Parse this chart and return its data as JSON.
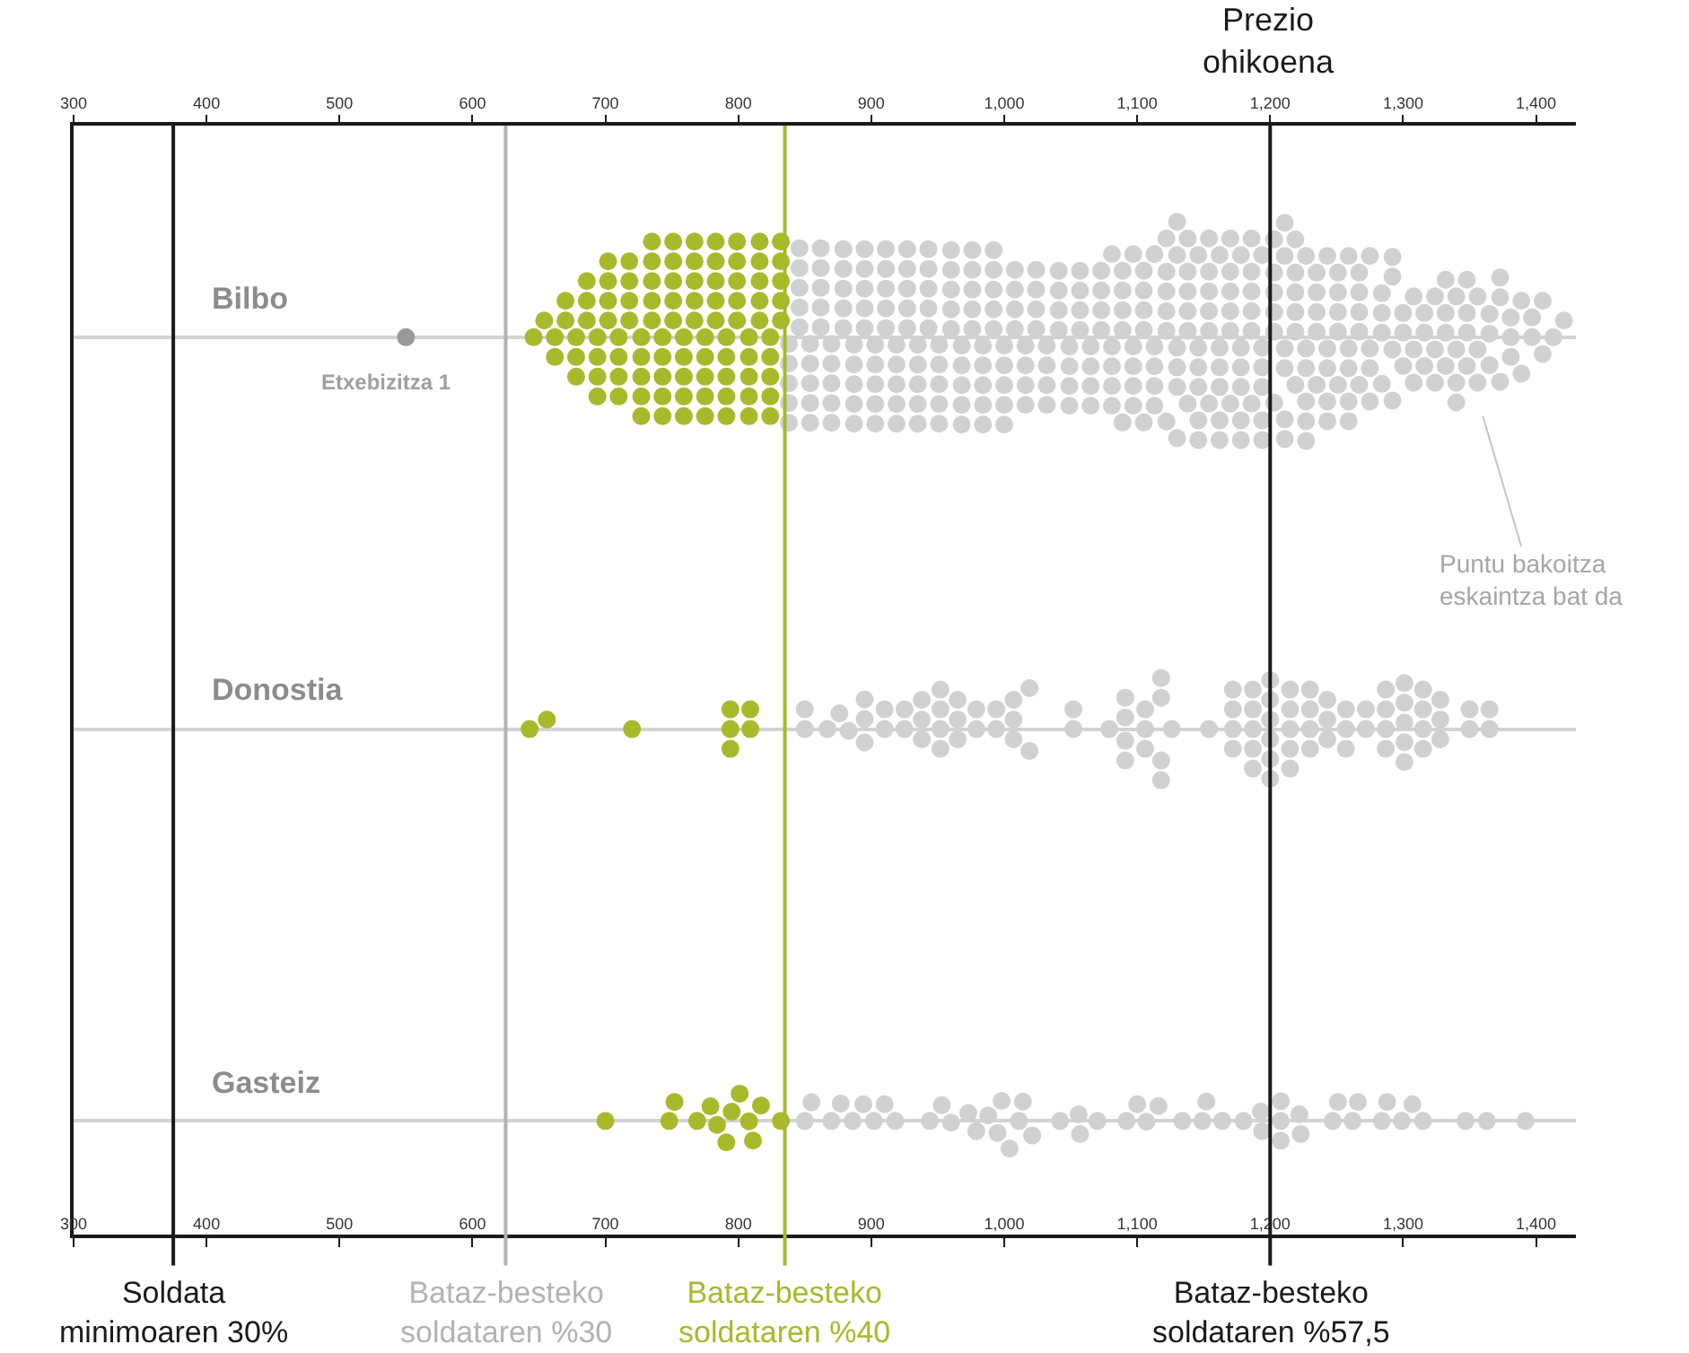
{
  "chart_data": {
    "type": "scatter",
    "orientation": "horizontal",
    "categories": [
      "Bilbo",
      "Donostia",
      "Gasteiz"
    ],
    "series": [
      {
        "color": "#a8b92c",
        "x": [
          "Bilbo",
          "Bilbo",
          "Bilbo",
          "Bilbo",
          "Bilbo",
          "Bilbo",
          "Bilbo",
          "Bilbo",
          "Bilbo",
          "Bilbo",
          "Bilbo",
          "Bilbo",
          "Bilbo",
          "Bilbo",
          "Bilbo",
          "Bilbo",
          "Bilbo",
          "Bilbo",
          "Bilbo",
          "Bilbo",
          "Bilbo",
          "Bilbo",
          "Bilbo",
          "Bilbo",
          "Bilbo",
          "Bilbo",
          "Bilbo",
          "Bilbo",
          "Bilbo",
          "Bilbo",
          "Bilbo",
          "Bilbo",
          "Bilbo",
          "Bilbo",
          "Bilbo",
          "Bilbo",
          "Bilbo",
          "Bilbo",
          "Bilbo",
          "Bilbo",
          "Bilbo",
          "Bilbo",
          "Bilbo",
          "Bilbo",
          "Bilbo",
          "Bilbo",
          "Bilbo",
          "Bilbo",
          "Bilbo",
          "Bilbo",
          "Bilbo",
          "Bilbo",
          "Bilbo",
          "Bilbo",
          "Bilbo",
          "Bilbo",
          "Bilbo",
          "Bilbo",
          "Bilbo",
          "Bilbo",
          "Bilbo",
          "Bilbo",
          "Bilbo",
          "Bilbo",
          "Bilbo",
          "Bilbo",
          "Bilbo",
          "Bilbo",
          "Bilbo",
          "Bilbo",
          "Bilbo",
          "Bilbo",
          "Bilbo",
          "Bilbo",
          "Bilbo",
          "Bilbo",
          "Bilbo",
          "Bilbo",
          "Bilbo",
          "Bilbo",
          "Bilbo",
          "Bilbo",
          "Bilbo",
          "Bilbo",
          "Bilbo",
          "Bilbo",
          "Bilbo",
          "Bilbo",
          "Bilbo",
          "Bilbo",
          "Bilbo",
          "Bilbo",
          "Bilbo",
          "Bilbo",
          "Bilbo",
          "Bilbo",
          "Bilbo",
          "Bilbo"
        ],
        "values": [
          646,
          654,
          662,
          662,
          670,
          670,
          678,
          678,
          678,
          686,
          686,
          686,
          694,
          694,
          694,
          694,
          702,
          702,
          702,
          702,
          710,
          710,
          710,
          710,
          718,
          718,
          718,
          718,
          727,
          727,
          727,
          727,
          727,
          735,
          735,
          735,
          735,
          735,
          743,
          743,
          743,
          743,
          743,
          751,
          751,
          751,
          751,
          751,
          759,
          759,
          759,
          759,
          759,
          767,
          767,
          767,
          767,
          767,
          775,
          775,
          775,
          775,
          775,
          783,
          783,
          783,
          783,
          783,
          791,
          791,
          791,
          791,
          791,
          799,
          799,
          799,
          799,
          799,
          808,
          808,
          808,
          808,
          808,
          816,
          816,
          816,
          816,
          816,
          824,
          824,
          824,
          824,
          824,
          832,
          832,
          832,
          832,
          832
        ]
      },
      {
        "color": "#999999",
        "x": [
          "Bilbo"
        ],
        "values": [
          550
        ]
      },
      {
        "color": "#d0d1d3",
        "x": [
          "Bilbo",
          "Bilbo",
          "Bilbo",
          "Bilbo",
          "Bilbo",
          "Bilbo",
          "Bilbo",
          "Bilbo",
          "Bilbo",
          "Bilbo",
          "Bilbo",
          "Bilbo",
          "Bilbo",
          "Bilbo",
          "Bilbo",
          "Bilbo",
          "Bilbo",
          "Bilbo",
          "Bilbo",
          "Bilbo",
          "Bilbo",
          "Bilbo",
          "Bilbo",
          "Bilbo",
          "Bilbo",
          "Bilbo",
          "Bilbo",
          "Bilbo",
          "Bilbo",
          "Bilbo",
          "Bilbo",
          "Bilbo",
          "Bilbo",
          "Bilbo",
          "Bilbo",
          "Bilbo",
          "Bilbo",
          "Bilbo",
          "Bilbo",
          "Bilbo",
          "Bilbo",
          "Bilbo",
          "Bilbo",
          "Bilbo",
          "Bilbo",
          "Bilbo",
          "Bilbo",
          "Bilbo",
          "Bilbo",
          "Bilbo",
          "Bilbo",
          "Bilbo",
          "Bilbo",
          "Bilbo",
          "Bilbo",
          "Bilbo",
          "Bilbo",
          "Bilbo",
          "Bilbo",
          "Bilbo",
          "Bilbo",
          "Bilbo",
          "Bilbo",
          "Bilbo",
          "Bilbo",
          "Bilbo",
          "Bilbo",
          "Bilbo",
          "Bilbo",
          "Bilbo",
          "Bilbo",
          "Bilbo",
          "Bilbo",
          "Bilbo",
          "Bilbo",
          "Bilbo",
          "Bilbo",
          "Bilbo",
          "Bilbo",
          "Bilbo",
          "Bilbo",
          "Bilbo",
          "Bilbo",
          "Bilbo",
          "Bilbo",
          "Bilbo",
          "Bilbo",
          "Bilbo",
          "Bilbo",
          "Bilbo",
          "Bilbo",
          "Bilbo",
          "Bilbo",
          "Bilbo",
          "Bilbo",
          "Bilbo",
          "Bilbo",
          "Bilbo",
          "Bilbo",
          "Bilbo",
          "Bilbo",
          "Bilbo",
          "Bilbo",
          "Bilbo",
          "Bilbo",
          "Bilbo",
          "Bilbo",
          "Bilbo",
          "Bilbo",
          "Bilbo",
          "Bilbo",
          "Bilbo",
          "Bilbo",
          "Bilbo",
          "Bilbo",
          "Bilbo",
          "Bilbo",
          "Bilbo",
          "Bilbo",
          "Bilbo",
          "Bilbo",
          "Bilbo",
          "Bilbo",
          "Bilbo",
          "Bilbo",
          "Bilbo",
          "Bilbo",
          "Bilbo",
          "Bilbo",
          "Bilbo",
          "Bilbo",
          "Bilbo",
          "Bilbo",
          "Bilbo",
          "Bilbo",
          "Bilbo",
          "Bilbo",
          "Bilbo",
          "Bilbo",
          "Bilbo",
          "Bilbo",
          "Bilbo",
          "Bilbo",
          "Bilbo",
          "Bilbo",
          "Bilbo",
          "Bilbo",
          "Bilbo",
          "Bilbo",
          "Bilbo",
          "Bilbo",
          "Bilbo",
          "Bilbo",
          "Bilbo",
          "Bilbo",
          "Bilbo",
          "Bilbo",
          "Bilbo",
          "Bilbo",
          "Bilbo",
          "Bilbo",
          "Bilbo",
          "Bilbo",
          "Bilbo",
          "Bilbo",
          "Bilbo",
          "Bilbo",
          "Bilbo",
          "Bilbo",
          "Bilbo",
          "Bilbo",
          "Bilbo",
          "Bilbo",
          "Bilbo",
          "Bilbo",
          "Bilbo",
          "Bilbo",
          "Bilbo",
          "Bilbo",
          "Bilbo",
          "Bilbo",
          "Bilbo",
          "Bilbo",
          "Bilbo",
          "Bilbo",
          "Bilbo",
          "Bilbo",
          "Bilbo",
          "Bilbo",
          "Bilbo",
          "Bilbo",
          "Bilbo",
          "Bilbo",
          "Bilbo",
          "Bilbo",
          "Bilbo",
          "Bilbo",
          "Bilbo",
          "Bilbo",
          "Bilbo",
          "Bilbo",
          "Bilbo",
          "Bilbo",
          "Bilbo",
          "Bilbo",
          "Bilbo",
          "Bilbo",
          "Bilbo",
          "Bilbo",
          "Bilbo",
          "Bilbo",
          "Bilbo",
          "Bilbo",
          "Bilbo",
          "Bilbo",
          "Bilbo",
          "Bilbo",
          "Bilbo",
          "Bilbo",
          "Bilbo",
          "Bilbo",
          "Bilbo",
          "Bilbo",
          "Bilbo",
          "Bilbo",
          "Bilbo",
          "Bilbo",
          "Bilbo",
          "Bilbo",
          "Bilbo",
          "Bilbo",
          "Bilbo",
          "Bilbo",
          "Bilbo",
          "Bilbo",
          "Bilbo",
          "Bilbo",
          "Bilbo",
          "Bilbo",
          "Bilbo",
          "Bilbo",
          "Bilbo",
          "Bilbo",
          "Bilbo",
          "Bilbo",
          "Bilbo",
          "Bilbo",
          "Bilbo",
          "Bilbo",
          "Bilbo",
          "Bilbo",
          "Bilbo",
          "Bilbo",
          "Bilbo",
          "Bilbo",
          "Bilbo",
          "Bilbo",
          "Bilbo",
          "Bilbo",
          "Bilbo",
          "Bilbo",
          "Bilbo",
          "Bilbo",
          "Bilbo",
          "Bilbo",
          "Bilbo",
          "Bilbo",
          "Bilbo",
          "Bilbo",
          "Bilbo",
          "Bilbo",
          "Bilbo",
          "Bilbo",
          "Bilbo",
          "Bilbo",
          "Bilbo",
          "Bilbo",
          "Bilbo",
          "Bilbo",
          "Bilbo",
          "Bilbo",
          "Bilbo",
          "Bilbo",
          "Bilbo",
          "Bilbo",
          "Bilbo",
          "Bilbo",
          "Bilbo",
          "Bilbo",
          "Bilbo",
          "Bilbo",
          "Bilbo",
          "Bilbo",
          "Bilbo",
          "Bilbo",
          "Bilbo",
          "Bilbo",
          "Bilbo",
          "Bilbo",
          "Bilbo",
          "Bilbo",
          "Bilbo",
          "Bilbo",
          "Bilbo",
          "Bilbo",
          "Bilbo",
          "Bilbo",
          "Bilbo",
          "Bilbo",
          "Bilbo",
          "Bilbo",
          "Bilbo",
          "Bilbo",
          "Bilbo",
          "Bilbo",
          "Bilbo",
          "Bilbo",
          "Bilbo",
          "Bilbo",
          "Bilbo",
          "Bilbo",
          "Bilbo",
          "Bilbo",
          "Bilbo",
          "Bilbo",
          "Bilbo",
          "Bilbo",
          "Bilbo",
          "Bilbo",
          "Bilbo",
          "Bilbo"
        ],
        "values": [
          838,
          838,
          838,
          838,
          838,
          846,
          846,
          846,
          846,
          846,
          854,
          854,
          854,
          854,
          854,
          862,
          862,
          862,
          862,
          862,
          870,
          870,
          870,
          870,
          870,
          879,
          879,
          879,
          879,
          879,
          887,
          887,
          887,
          887,
          887,
          895,
          895,
          895,
          895,
          895,
          903,
          903,
          903,
          903,
          903,
          911,
          911,
          911,
          911,
          911,
          919,
          919,
          919,
          919,
          919,
          927,
          927,
          927,
          927,
          927,
          935,
          935,
          935,
          935,
          935,
          943,
          943,
          943,
          943,
          943,
          951,
          951,
          951,
          951,
          951,
          960,
          960,
          960,
          960,
          960,
          968,
          968,
          968,
          968,
          968,
          976,
          976,
          976,
          976,
          976,
          984,
          984,
          984,
          984,
          984,
          992,
          992,
          992,
          992,
          992,
          1000,
          1000,
          1000,
          1000,
          1000,
          1008,
          1008,
          1008,
          1008,
          1016,
          1016,
          1016,
          1016,
          1024,
          1024,
          1024,
          1024,
          1032,
          1032,
          1032,
          1032,
          1041,
          1041,
          1041,
          1041,
          1049,
          1049,
          1049,
          1049,
          1057,
          1057,
          1057,
          1057,
          1065,
          1065,
          1065,
          1065,
          1073,
          1073,
          1073,
          1073,
          1081,
          1081,
          1081,
          1081,
          1081,
          1089,
          1089,
          1089,
          1089,
          1089,
          1097,
          1097,
          1097,
          1097,
          1097,
          1105,
          1105,
          1105,
          1105,
          1105,
          1113,
          1113,
          1113,
          1113,
          1113,
          1122,
          1122,
          1122,
          1122,
          1122,
          1122,
          1130,
          1130,
          1130,
          1130,
          1130,
          1130,
          1138,
          1138,
          1138,
          1138,
          1138,
          1138,
          1146,
          1146,
          1146,
          1146,
          1146,
          1146,
          1154,
          1154,
          1154,
          1154,
          1154,
          1154,
          1162,
          1162,
          1162,
          1162,
          1162,
          1162,
          1170,
          1170,
          1170,
          1170,
          1170,
          1170,
          1178,
          1178,
          1178,
          1178,
          1178,
          1178,
          1186,
          1186,
          1186,
          1186,
          1186,
          1186,
          1194,
          1194,
          1194,
          1194,
          1194,
          1194,
          1203,
          1203,
          1203,
          1203,
          1203,
          1203,
          1211,
          1211,
          1211,
          1211,
          1211,
          1211,
          1219,
          1219,
          1219,
          1219,
          1219,
          1219,
          1227,
          1227,
          1227,
          1227,
          1227,
          1227,
          1235,
          1235,
          1235,
          1235,
          1235,
          1243,
          1243,
          1243,
          1243,
          1243,
          1251,
          1251,
          1251,
          1251,
          1251,
          1259,
          1259,
          1259,
          1259,
          1259,
          1267,
          1267,
          1267,
          1267,
          1267,
          1275,
          1275,
          1275,
          1275,
          1284,
          1284,
          1284,
          1284,
          1292,
          1292,
          1292,
          1292,
          1300,
          1300,
          1300,
          1308,
          1308,
          1308,
          1316,
          1316,
          1316,
          1324,
          1324,
          1324,
          1332,
          1332,
          1332,
          1332,
          1340,
          1340,
          1340,
          1340,
          1348,
          1348,
          1348,
          1348,
          1356,
          1356,
          1356,
          1365,
          1365,
          1365,
          1373,
          1373,
          1373,
          1381,
          1381,
          1381,
          1389,
          1389,
          1397,
          1397,
          1405,
          1405,
          1413,
          1421
        ]
      },
      {
        "color": "#a8b92c",
        "x": [
          "Donostia",
          "Donostia",
          "Donostia",
          "Donostia",
          "Donostia",
          "Donostia",
          "Donostia",
          "Donostia"
        ],
        "values": [
          643,
          656,
          720,
          794,
          794,
          794,
          809,
          809
        ]
      },
      {
        "color": "#d0d1d3",
        "x": [
          "Donostia",
          "Donostia",
          "Donostia",
          "Donostia",
          "Donostia",
          "Donostia",
          "Donostia",
          "Donostia",
          "Donostia",
          "Donostia",
          "Donostia",
          "Donostia",
          "Donostia",
          "Donostia",
          "Donostia",
          "Donostia",
          "Donostia",
          "Donostia",
          "Donostia",
          "Donostia",
          "Donostia",
          "Donostia",
          "Donostia",
          "Donostia",
          "Donostia",
          "Donostia",
          "Donostia",
          "Donostia",
          "Donostia",
          "Donostia",
          "Donostia",
          "Donostia",
          "Donostia",
          "Donostia",
          "Donostia",
          "Donostia",
          "Donostia",
          "Donostia",
          "Donostia",
          "Donostia",
          "Donostia",
          "Donostia",
          "Donostia",
          "Donostia",
          "Donostia",
          "Donostia",
          "Donostia",
          "Donostia",
          "Donostia",
          "Donostia",
          "Donostia",
          "Donostia",
          "Donostia",
          "Donostia",
          "Donostia",
          "Donostia",
          "Donostia",
          "Donostia",
          "Donostia",
          "Donostia",
          "Donostia",
          "Donostia",
          "Donostia",
          "Donostia",
          "Donostia",
          "Donostia",
          "Donostia",
          "Donostia",
          "Donostia",
          "Donostia",
          "Donostia",
          "Donostia",
          "Donostia",
          "Donostia",
          "Donostia",
          "Donostia",
          "Donostia",
          "Donostia",
          "Donostia",
          "Donostia",
          "Donostia",
          "Donostia",
          "Donostia",
          "Donostia",
          "Donostia",
          "Donostia",
          "Donostia",
          "Donostia",
          "Donostia",
          "Donostia",
          "Donostia",
          "Donostia",
          "Donostia",
          "Donostia",
          "Donostia",
          "Donostia",
          "Donostia",
          "Donostia",
          "Donostia"
        ],
        "values": [
          850,
          850,
          867,
          876,
          883,
          895,
          895,
          895,
          910,
          910,
          925,
          925,
          938,
          938,
          938,
          952,
          952,
          952,
          952,
          965,
          965,
          965,
          979,
          979,
          994,
          994,
          1007,
          1007,
          1007,
          1019,
          1019,
          1052,
          1052,
          1079,
          1091,
          1091,
          1091,
          1091,
          1106,
          1106,
          1106,
          1118,
          1118,
          1118,
          1118,
          1126,
          1154,
          1172,
          1172,
          1172,
          1172,
          1187,
          1187,
          1187,
          1187,
          1187,
          1200,
          1200,
          1200,
          1200,
          1200,
          1200,
          1215,
          1215,
          1215,
          1215,
          1215,
          1230,
          1230,
          1230,
          1230,
          1243,
          1243,
          1243,
          1257,
          1257,
          1257,
          1272,
          1272,
          1287,
          1287,
          1287,
          1287,
          1301,
          1301,
          1301,
          1301,
          1301,
          1315,
          1315,
          1315,
          1315,
          1328,
          1328,
          1328,
          1350,
          1350,
          1365,
          1365
        ]
      },
      {
        "color": "#a8b92c",
        "x": [
          "Gasteiz",
          "Gasteiz",
          "Gasteiz",
          "Gasteiz",
          "Gasteiz",
          "Gasteiz",
          "Gasteiz",
          "Gasteiz",
          "Gasteiz",
          "Gasteiz",
          "Gasteiz",
          "Gasteiz",
          "Gasteiz"
        ],
        "values": [
          700,
          748,
          752,
          769,
          779,
          784,
          791,
          795,
          801,
          808,
          811,
          817,
          832
        ]
      },
      {
        "color": "#d0d1d3",
        "x": [
          "Gasteiz",
          "Gasteiz",
          "Gasteiz",
          "Gasteiz",
          "Gasteiz",
          "Gasteiz",
          "Gasteiz",
          "Gasteiz",
          "Gasteiz",
          "Gasteiz",
          "Gasteiz",
          "Gasteiz",
          "Gasteiz",
          "Gasteiz",
          "Gasteiz",
          "Gasteiz",
          "Gasteiz",
          "Gasteiz",
          "Gasteiz",
          "Gasteiz",
          "Gasteiz",
          "Gasteiz",
          "Gasteiz",
          "Gasteiz",
          "Gasteiz",
          "Gasteiz",
          "Gasteiz",
          "Gasteiz",
          "Gasteiz",
          "Gasteiz",
          "Gasteiz",
          "Gasteiz",
          "Gasteiz",
          "Gasteiz",
          "Gasteiz",
          "Gasteiz",
          "Gasteiz",
          "Gasteiz",
          "Gasteiz",
          "Gasteiz",
          "Gasteiz",
          "Gasteiz",
          "Gasteiz",
          "Gasteiz",
          "Gasteiz",
          "Gasteiz",
          "Gasteiz",
          "Gasteiz",
          "Gasteiz",
          "Gasteiz",
          "Gasteiz",
          "Gasteiz",
          "Gasteiz"
        ],
        "values": [
          850,
          855,
          870,
          877,
          886,
          894,
          902,
          910,
          918,
          944,
          953,
          960,
          973,
          979,
          988,
          995,
          998,
          1004,
          1011,
          1014,
          1021,
          1042,
          1056,
          1057,
          1070,
          1092,
          1100,
          1107,
          1116,
          1134,
          1149,
          1152,
          1164,
          1180,
          1193,
          1194,
          1208,
          1208,
          1208,
          1222,
          1223,
          1247,
          1251,
          1262,
          1266,
          1284,
          1288,
          1299,
          1307,
          1315,
          1347,
          1363,
          1392
        ]
      }
    ],
    "xlim": [
      300,
      1430
    ],
    "xticks": [
      300,
      400,
      500,
      600,
      700,
      800,
      900,
      {
        "value": 1000,
        "label": "1,000"
      },
      {
        "value": 1100,
        "label": "1,100"
      },
      {
        "value": 1200,
        "label": "1,200"
      },
      {
        "value": 1300,
        "label": "1,300"
      },
      {
        "value": 1400,
        "label": "1,400"
      }
    ],
    "x2lim": [
      300,
      1430
    ],
    "x2ticks": [
      300,
      400,
      500,
      600,
      700,
      800,
      900,
      {
        "value": 1000,
        "label": "1,000"
      },
      {
        "value": 1100,
        "label": "1,100"
      },
      {
        "value": 1200,
        "label": "1,200"
      },
      {
        "value": 1300,
        "label": "1,300"
      },
      {
        "value": 1400,
        "label": "1,400"
      }
    ],
    "ref_lines": [
      {
        "axis": "x",
        "value": 375,
        "label": "Soldata minimoaren 30%",
        "color": "#1a1a1a"
      },
      {
        "axis": "x",
        "value": 625,
        "label": "Bataz-besteko soldataren %30",
        "color": "#b3b3b3"
      },
      {
        "axis": "x",
        "value": 835,
        "label": "Bataz-besteko soldataren %40",
        "color": "#a8b92c"
      },
      {
        "axis": "x",
        "value": 1200,
        "label": "Bataz-besteko soldataren %57,5",
        "color": "#1a1a1a"
      }
    ],
    "annotations": [
      "Etxebizitza 1",
      "Prezio ohikoena",
      "Puntu bakoitza eskaintza bat da"
    ],
    "grid": "y",
    "marker": "circle"
  }
}
